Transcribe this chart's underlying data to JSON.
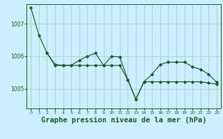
{
  "background_color": "#cceeff",
  "grid_color": "#aacccc",
  "line_color": "#1a5c2a",
  "xlabel": "Graphe pression niveau de la mer (hPa)",
  "xlabel_fontsize": 7.5,
  "xlim": [
    -0.5,
    23.5
  ],
  "ylim": [
    1004.4,
    1007.6
  ],
  "yticks": [
    1005,
    1006,
    1007
  ],
  "xticks": [
    0,
    1,
    2,
    3,
    4,
    5,
    6,
    7,
    8,
    9,
    10,
    11,
    12,
    13,
    14,
    15,
    16,
    17,
    18,
    19,
    20,
    21,
    22,
    23
  ],
  "series1_x": [
    0,
    1,
    2,
    3,
    4,
    5,
    6,
    7,
    8,
    9,
    10,
    11,
    12,
    13,
    14,
    15,
    16,
    17,
    18,
    19,
    20,
    21,
    22,
    23
  ],
  "series1_y": [
    1007.5,
    1006.65,
    1006.1,
    1005.75,
    1005.72,
    1005.72,
    1005.88,
    1006.0,
    1006.1,
    1005.72,
    1006.0,
    1005.98,
    1005.28,
    1004.68,
    1005.22,
    1005.45,
    1005.75,
    1005.82,
    1005.82,
    1005.82,
    1005.68,
    1005.6,
    1005.45,
    1005.2
  ],
  "series2_x": [
    2,
    3,
    4,
    5,
    6,
    7,
    8,
    9,
    10,
    11,
    12,
    13,
    14,
    15,
    16,
    17,
    18,
    19,
    20,
    21,
    22,
    23
  ],
  "series2_y": [
    1006.1,
    1005.72,
    1005.72,
    1005.72,
    1005.72,
    1005.72,
    1005.72,
    1005.72,
    1005.72,
    1005.72,
    1005.28,
    1004.68,
    1005.22,
    1005.22,
    1005.22,
    1005.22,
    1005.22,
    1005.22,
    1005.22,
    1005.22,
    1005.18,
    1005.15
  ]
}
